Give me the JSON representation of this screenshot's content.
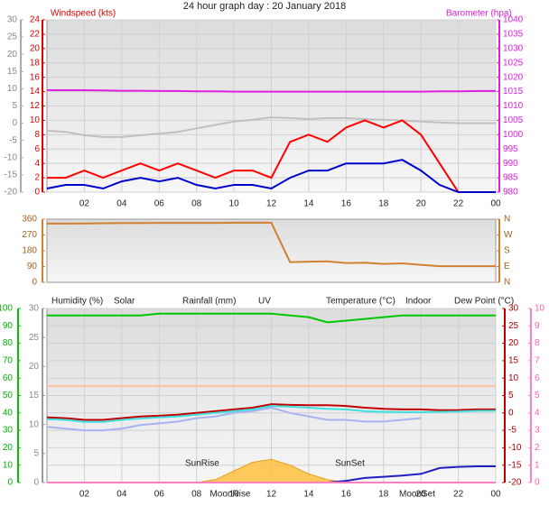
{
  "chart_data": [
    {
      "type": "line",
      "title": "24 hour graph day : 20 January 2018",
      "y_label": "Windspeed (kts)",
      "y2_label": "Barometer (hpa)",
      "x": [
        0,
        1,
        2,
        3,
        4,
        5,
        6,
        7,
        8,
        9,
        10,
        11,
        12,
        13,
        14,
        15,
        16,
        17,
        18,
        19,
        20,
        21,
        22,
        23,
        24
      ],
      "xlim": [
        0,
        24
      ],
      "xticks": [
        {
          "value": 2,
          "label": "02"
        },
        {
          "value": 4,
          "label": "04"
        },
        {
          "value": 6,
          "label": "06"
        },
        {
          "value": 8,
          "label": "08"
        },
        {
          "value": 10,
          "label": "10"
        },
        12,
        14,
        16,
        18,
        20,
        22,
        {
          "value": 24,
          "label": "00"
        }
      ],
      "ylim": [
        0,
        24
      ],
      "yticks": [
        0,
        2,
        4,
        6,
        8,
        10,
        12,
        14,
        16,
        18,
        20,
        22,
        24
      ],
      "y2lim": [
        980,
        1040
      ],
      "y2ticks": [
        980,
        985,
        990,
        995,
        1000,
        1005,
        1010,
        1015,
        1020,
        1025,
        1030,
        1035,
        1040
      ],
      "y3lim": [
        -20,
        30
      ],
      "y3ticks": [
        -20,
        -15,
        -10,
        -5,
        0,
        5,
        10,
        15,
        20,
        25,
        30
      ],
      "grid": true,
      "series": [
        {
          "color": "#c0c0c0",
          "axis": "y3",
          "values": [
            -2.2,
            -2.5,
            -3.5,
            -4,
            -4,
            -3.5,
            -3,
            -2.5,
            -1.5,
            -0.5,
            0.5,
            1,
            1.7,
            1.5,
            1.2,
            1.5,
            1.5,
            1.2,
            1,
            0.8,
            0.5,
            0.2,
            0,
            0,
            0
          ]
        },
        {
          "color": "#e020e0",
          "axis": "y2",
          "values": [
            1015.5,
            1015.5,
            1015.5,
            1015.4,
            1015.3,
            1015.3,
            1015.2,
            1015.2,
            1015.1,
            1015.1,
            1015,
            1015,
            1015,
            1015,
            1015,
            1015,
            1015,
            1015,
            1015,
            1015,
            1015,
            1015.1,
            1015.1,
            1015.2,
            1015.2
          ]
        },
        {
          "color": "#ff0000",
          "values": [
            2,
            2,
            3,
            2,
            3,
            4,
            3,
            4,
            3,
            2,
            3,
            3,
            2,
            7,
            8,
            7,
            9,
            10,
            9,
            10,
            8,
            4,
            0,
            0,
            0
          ]
        },
        {
          "color": "#0000cc",
          "values": [
            0.5,
            1,
            1,
            0.5,
            1.5,
            2,
            1.5,
            2,
            1,
            0.5,
            1,
            1,
            0.5,
            2,
            3,
            3,
            4,
            4,
            4,
            4.5,
            3,
            1,
            0,
            0,
            0
          ]
        }
      ]
    },
    {
      "type": "line",
      "x": [
        0,
        1,
        2,
        3,
        4,
        5,
        6,
        7,
        8,
        9,
        10,
        11,
        12,
        13,
        14,
        15,
        16,
        17,
        18,
        19,
        20,
        21,
        22,
        23,
        24
      ],
      "xlim": [
        0,
        24
      ],
      "ylim": [
        0,
        360
      ],
      "yticks": [
        0,
        90,
        180,
        270,
        360
      ],
      "y2lim": [
        0,
        360
      ],
      "y2ticks": [
        {
          "value": 0,
          "label": "N"
        },
        {
          "value": 90,
          "label": "E"
        },
        {
          "value": 180,
          "label": "S"
        },
        {
          "value": 270,
          "label": "W"
        },
        {
          "value": 360,
          "label": "N"
        }
      ],
      "series": [
        {
          "color": "#d08030",
          "values": [
            335,
            335,
            336,
            337,
            338,
            338,
            339,
            339,
            339,
            339,
            340,
            340,
            340,
            115,
            118,
            120,
            110,
            112,
            105,
            108,
            100,
            92,
            92,
            92,
            92
          ]
        }
      ]
    },
    {
      "type": "line",
      "x": [
        0,
        1,
        2,
        3,
        4,
        5,
        6,
        7,
        8,
        9,
        10,
        11,
        12,
        13,
        14,
        15,
        16,
        17,
        18,
        19,
        20,
        21,
        22,
        23,
        24
      ],
      "xlim": [
        0,
        24
      ],
      "xticks": [
        {
          "value": 2,
          "label": "02"
        },
        {
          "value": 4,
          "label": "04"
        },
        {
          "value": 6,
          "label": "06"
        },
        {
          "value": 8,
          "label": "08"
        },
        {
          "value": 10,
          "label": "10"
        },
        12,
        14,
        16,
        18,
        20,
        22,
        {
          "value": 24,
          "label": "00"
        }
      ],
      "ylim": [
        0,
        100
      ],
      "yticks": [
        0,
        10,
        20,
        30,
        40,
        50,
        60,
        70,
        80,
        90,
        100
      ],
      "y2lim": [
        -20,
        30
      ],
      "y2ticks": [
        -20,
        -15,
        -10,
        -5,
        0,
        5,
        10,
        15,
        20,
        25,
        30
      ],
      "y3lim": [
        0,
        30
      ],
      "y3ticks": [
        0,
        5,
        10,
        15,
        20,
        25,
        30
      ],
      "y4lim": [
        0,
        10
      ],
      "y4ticks": [
        0,
        1,
        2,
        3,
        4,
        5,
        6,
        7,
        8,
        9,
        10
      ],
      "grid": true,
      "series": [
        {
          "name": "Humidity (%)",
          "color": "#00c800",
          "values": [
            96,
            96,
            96,
            96,
            96,
            96,
            97,
            97,
            97,
            97,
            97,
            97,
            97,
            96,
            95,
            92,
            93,
            94,
            95,
            96,
            96,
            96,
            96,
            96,
            96
          ]
        },
        {
          "name": "Solar",
          "color": "#ffc040",
          "axis": "y3",
          "style": "area",
          "values": [
            0,
            0,
            0,
            0,
            0,
            0,
            0,
            0,
            0,
            0.5,
            2,
            3.5,
            4,
            3,
            1.5,
            0.5,
            0,
            0,
            0,
            0,
            0,
            0,
            0,
            0,
            0
          ]
        },
        {
          "name": "Rainfall (mm)",
          "color": "#2020c0",
          "axis": "y3",
          "values": [
            0,
            0,
            0,
            0,
            0,
            0,
            0,
            0,
            0,
            0,
            0,
            0,
            0,
            0,
            0,
            0,
            0.3,
            0.8,
            1,
            1.2,
            1.5,
            2.5,
            2.7,
            2.8,
            2.8
          ]
        },
        {
          "name": "UV",
          "color": "#ff80c0",
          "axis": "y4",
          "values": [
            0,
            0,
            0,
            0,
            0,
            0,
            0,
            0,
            0,
            0,
            0,
            0,
            0,
            0,
            0,
            0,
            0,
            0,
            0,
            0,
            0,
            0,
            0,
            0,
            0
          ]
        },
        {
          "name": "Temperature (°C)",
          "color": "#c00000",
          "axis": "y2",
          "values": [
            -1.3,
            -1.5,
            -2,
            -2,
            -1.5,
            -1,
            -0.8,
            -0.5,
            0,
            0.5,
            1,
            1.5,
            2.5,
            2.3,
            2.2,
            2.2,
            2,
            1.5,
            1.2,
            1,
            1,
            0.8,
            0.8,
            1,
            1
          ]
        },
        {
          "name": "Indoor",
          "color": "#ffc0a0",
          "axis": "y2",
          "values": [
            7.7,
            7.7,
            7.7,
            7.7,
            7.7,
            7.7,
            7.7,
            7.7,
            7.7,
            7.7,
            7.7,
            7.7,
            7.7,
            7.7,
            7.7,
            7.7,
            7.7,
            7.7,
            7.7,
            7.7,
            7.7,
            7.7,
            7.7,
            7.7,
            7.7
          ]
        },
        {
          "name": "Dew Point (°C)",
          "color": "#40e0e0",
          "axis": "y2",
          "values": [
            -1.8,
            -2,
            -2.6,
            -2.6,
            -2,
            -1.6,
            -1.3,
            -1,
            -0.5,
            0,
            0.5,
            1,
            2,
            1.8,
            1.5,
            1.2,
            1,
            0.5,
            0.3,
            0.2,
            0.2,
            0.3,
            0.4,
            0.6,
            0.6
          ]
        },
        {
          "color": "#a8b4f0",
          "axis": "y2",
          "values": [
            -4,
            -4.5,
            -5,
            -5,
            -4.5,
            -3.5,
            -3,
            -2.5,
            -1.5,
            -1,
            0,
            0.5,
            1.5,
            0,
            -1,
            -2,
            -2,
            -2.5,
            -2.5,
            -2,
            -1.5,
            null,
            null,
            null,
            null
          ]
        }
      ],
      "annotations": [
        {
          "text": "SunRise",
          "x": 8.3
        },
        {
          "text": "SunSet",
          "x": 16.2
        },
        {
          "text": "MoonRise",
          "x": 9.8
        },
        {
          "text": "MoonSet",
          "x": 19.8
        }
      ]
    }
  ]
}
